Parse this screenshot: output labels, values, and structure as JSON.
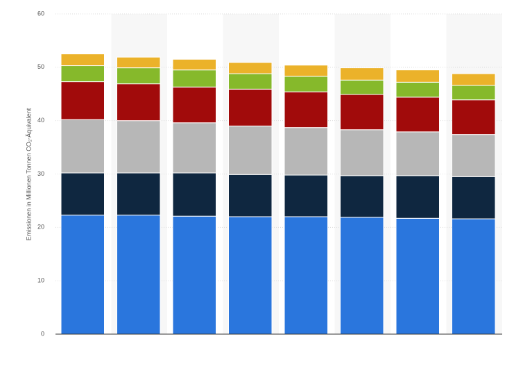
{
  "chart_data": {
    "type": "stacked-bar",
    "y_label": "Emissionen in Millionen Tonnen CO₂-Äquivalent",
    "categories": [
      null,
      null,
      null,
      null,
      null,
      null,
      null,
      null
    ],
    "series": [
      {
        "color": "#2a76dd",
        "values": [
          22.3,
          22.3,
          22.1,
          22.0,
          22.0,
          21.9,
          21.7,
          21.6
        ]
      },
      {
        "color": "#0f2740",
        "values": [
          7.9,
          7.9,
          8.1,
          7.9,
          7.8,
          7.8,
          8.0,
          7.9
        ]
      },
      {
        "color": "#b7b7b7",
        "values": [
          10.0,
          9.8,
          9.4,
          9.1,
          8.9,
          8.6,
          8.2,
          7.9
        ]
      },
      {
        "color": "#a10b0b",
        "values": [
          7.1,
          6.9,
          6.7,
          6.9,
          6.7,
          6.6,
          6.5,
          6.5
        ]
      },
      {
        "color": "#86b92b",
        "values": [
          3.0,
          3.0,
          3.2,
          2.9,
          2.9,
          2.7,
          2.8,
          2.7
        ]
      },
      {
        "color": "#ebb22a",
        "values": [
          2.2,
          2.0,
          2.0,
          2.1,
          2.1,
          2.3,
          2.3,
          2.2
        ]
      }
    ],
    "ylim": [
      0,
      60
    ],
    "yticks": [
      0,
      10,
      20,
      30,
      40,
      50,
      60
    ],
    "grid": true
  }
}
